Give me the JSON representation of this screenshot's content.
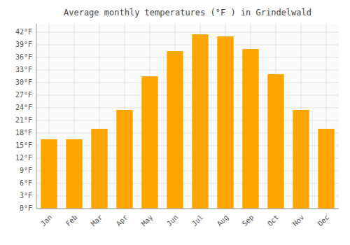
{
  "chart_data": {
    "type": "bar",
    "title": "Average monthly temperatures (°F ) in Grindelwald",
    "categories": [
      "Jan",
      "Feb",
      "Mar",
      "Apr",
      "May",
      "Jun",
      "Jul",
      "Aug",
      "Sep",
      "Oct",
      "Nov",
      "Dec"
    ],
    "values": [
      16.5,
      16.5,
      19.0,
      23.5,
      31.5,
      37.5,
      41.5,
      41.0,
      38.0,
      32.0,
      23.5,
      19.0
    ],
    "color": "#FFA500",
    "ylim": [
      0,
      44
    ],
    "yticks": [
      {
        "value": 0,
        "label": "0°F"
      },
      {
        "value": 3,
        "label": "3°F"
      },
      {
        "value": 6,
        "label": "6°F"
      },
      {
        "value": 9,
        "label": "9°F"
      },
      {
        "value": 12,
        "label": "12°F"
      },
      {
        "value": 15,
        "label": "15°F"
      },
      {
        "value": 18,
        "label": "18°F"
      },
      {
        "value": 21,
        "label": "21°F"
      },
      {
        "value": 24,
        "label": "24°F"
      },
      {
        "value": 27,
        "label": "27°F"
      },
      {
        "value": 30,
        "label": "30°F"
      },
      {
        "value": 33,
        "label": "33°F"
      },
      {
        "value": 36,
        "label": "36°F"
      },
      {
        "value": 39,
        "label": "39°F"
      },
      {
        "value": 42,
        "label": "42°F"
      }
    ],
    "grid": true
  }
}
